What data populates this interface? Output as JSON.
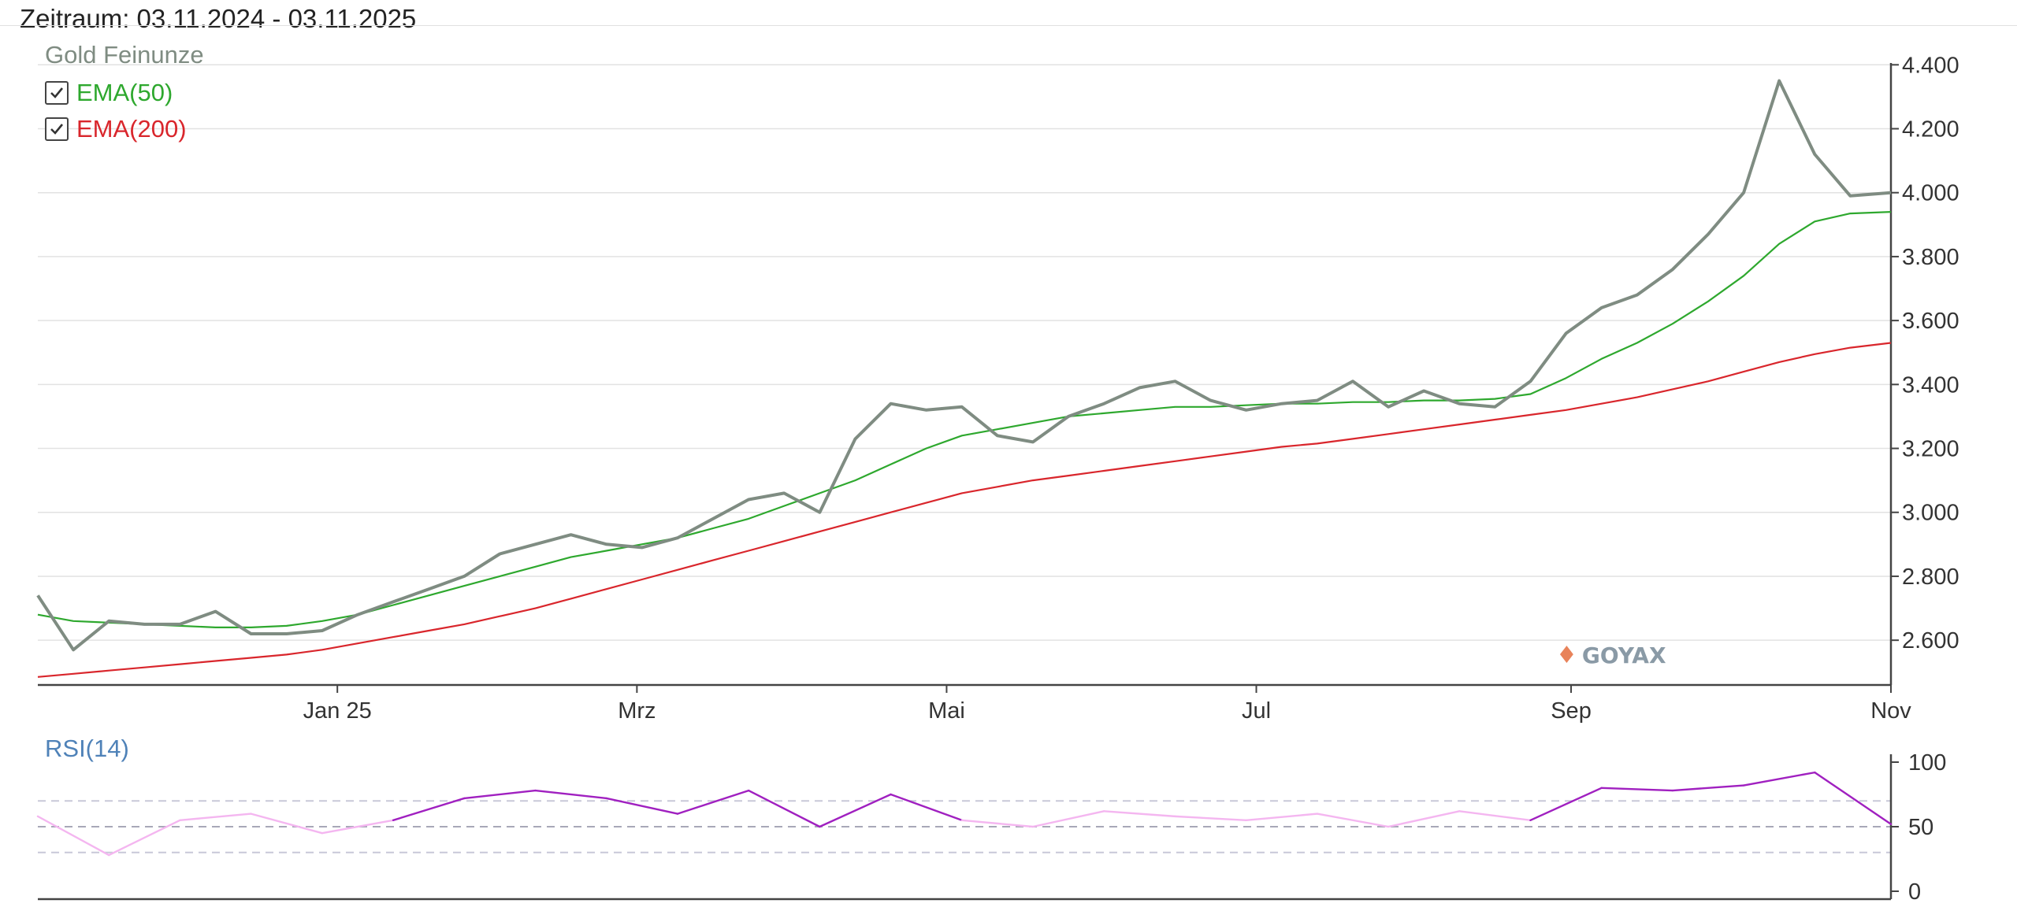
{
  "header": {
    "period": "Zeitraum: 03.11.2024 - 03.11.2025"
  },
  "instrument": "Gold Feinunze",
  "legend": [
    {
      "label": "EMA(50)",
      "checked": true,
      "color": "#2ea82e"
    },
    {
      "label": "EMA(200)",
      "checked": true,
      "color": "#d9262c"
    }
  ],
  "rsi": {
    "label": "RSI(14)"
  },
  "logo": "GOYAX",
  "colors": {
    "price": "#7f8c82",
    "ema50": "#2ea82e",
    "ema200": "#d9262c",
    "rsi_high": "#a020c0",
    "rsi_low": "#f4b6f0"
  },
  "chart_data": [
    {
      "type": "line",
      "title": "Gold Feinunze",
      "x_ticks": [
        "Jan 25",
        "Mrz",
        "Mai",
        "Jul",
        "Sep",
        "Nov"
      ],
      "y_ticks": [
        "2.600",
        "2.800",
        "3.000",
        "3.200",
        "3.400",
        "3.600",
        "3.800",
        "4.000",
        "4.200",
        "4.400"
      ],
      "ylim": [
        2460,
        4450
      ],
      "grid": true,
      "legend_position": "top-left",
      "x": [
        "2024-11-03",
        "2024-11-10",
        "2024-11-17",
        "2024-11-24",
        "2024-12-01",
        "2024-12-08",
        "2024-12-15",
        "2024-12-22",
        "2024-12-29",
        "2025-01-05",
        "2025-01-12",
        "2025-01-19",
        "2025-01-26",
        "2025-02-02",
        "2025-02-09",
        "2025-02-16",
        "2025-02-23",
        "2025-03-02",
        "2025-03-09",
        "2025-03-16",
        "2025-03-23",
        "2025-03-30",
        "2025-04-06",
        "2025-04-13",
        "2025-04-20",
        "2025-04-27",
        "2025-05-04",
        "2025-05-11",
        "2025-05-18",
        "2025-05-25",
        "2025-06-01",
        "2025-06-08",
        "2025-06-15",
        "2025-06-22",
        "2025-06-29",
        "2025-07-06",
        "2025-07-13",
        "2025-07-20",
        "2025-07-27",
        "2025-08-03",
        "2025-08-10",
        "2025-08-17",
        "2025-08-24",
        "2025-08-31",
        "2025-09-07",
        "2025-09-14",
        "2025-09-21",
        "2025-09-28",
        "2025-10-05",
        "2025-10-12",
        "2025-10-19",
        "2025-10-26",
        "2025-11-03"
      ],
      "series": [
        {
          "name": "Gold Feinunze",
          "values": [
            2740,
            2570,
            2660,
            2650,
            2650,
            2690,
            2620,
            2620,
            2630,
            2680,
            2720,
            2760,
            2800,
            2870,
            2900,
            2930,
            2900,
            2890,
            2920,
            2980,
            3040,
            3060,
            3000,
            3230,
            3340,
            3320,
            3330,
            3240,
            3220,
            3300,
            3340,
            3390,
            3410,
            3350,
            3320,
            3340,
            3350,
            3410,
            3330,
            3380,
            3340,
            3330,
            3410,
            3560,
            3640,
            3680,
            3760,
            3870,
            4000,
            4350,
            4120,
            3990,
            4000
          ]
        },
        {
          "name": "EMA(50)",
          "values": [
            2680,
            2660,
            2655,
            2650,
            2645,
            2640,
            2640,
            2645,
            2660,
            2680,
            2710,
            2740,
            2770,
            2800,
            2830,
            2860,
            2880,
            2900,
            2920,
            2950,
            2980,
            3020,
            3060,
            3100,
            3150,
            3200,
            3240,
            3260,
            3280,
            3300,
            3310,
            3320,
            3330,
            3330,
            3335,
            3340,
            3340,
            3345,
            3345,
            3350,
            3350,
            3355,
            3370,
            3420,
            3480,
            3530,
            3590,
            3660,
            3740,
            3840,
            3910,
            3935,
            3940
          ]
        },
        {
          "name": "EMA(200)",
          "values": [
            2485,
            2495,
            2505,
            2515,
            2525,
            2535,
            2545,
            2555,
            2570,
            2590,
            2610,
            2630,
            2650,
            2675,
            2700,
            2730,
            2760,
            2790,
            2820,
            2850,
            2880,
            2910,
            2940,
            2970,
            3000,
            3030,
            3060,
            3080,
            3100,
            3115,
            3130,
            3145,
            3160,
            3175,
            3190,
            3205,
            3215,
            3230,
            3245,
            3260,
            3275,
            3290,
            3305,
            3320,
            3340,
            3360,
            3385,
            3410,
            3440,
            3470,
            3495,
            3515,
            3530
          ]
        }
      ]
    },
    {
      "type": "line",
      "title": "RSI(14)",
      "y_ticks": [
        "0",
        "50",
        "100"
      ],
      "ylim": [
        0,
        100
      ],
      "reference_lines": [
        30,
        50,
        70
      ],
      "x": [
        "2024-11-03",
        "2024-11-17",
        "2024-12-01",
        "2024-12-15",
        "2024-12-29",
        "2025-01-12",
        "2025-01-26",
        "2025-02-09",
        "2025-02-23",
        "2025-03-09",
        "2025-03-23",
        "2025-04-06",
        "2025-04-20",
        "2025-05-04",
        "2025-05-18",
        "2025-06-01",
        "2025-06-15",
        "2025-06-29",
        "2025-07-13",
        "2025-07-27",
        "2025-08-10",
        "2025-08-24",
        "2025-09-07",
        "2025-09-21",
        "2025-10-05",
        "2025-10-19",
        "2025-11-03"
      ],
      "series": [
        {
          "name": "RSI(14)",
          "values": [
            58,
            28,
            55,
            60,
            45,
            55,
            72,
            78,
            72,
            60,
            78,
            50,
            75,
            55,
            50,
            62,
            58,
            55,
            60,
            50,
            62,
            55,
            80,
            78,
            82,
            92,
            52
          ]
        }
      ]
    }
  ]
}
